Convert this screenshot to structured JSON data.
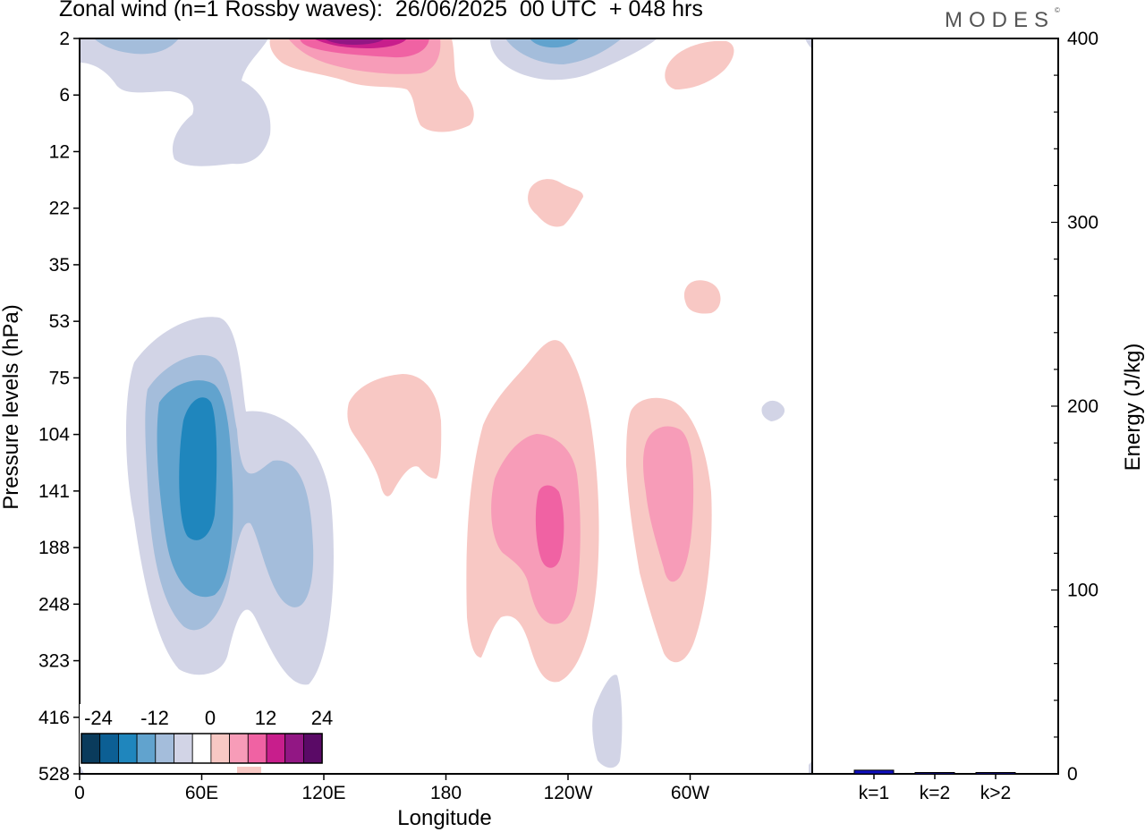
{
  "header": {
    "title": "Zonal wind (n=1 Rossby waves):  26/06/2025  00 UTC  + 048 hrs",
    "brand": "MODES",
    "brand_mark": "©"
  },
  "chart_data": [
    {
      "type": "heatmap",
      "xlabel": "Longitude",
      "ylabel": "Pressure levels (hPa)",
      "x_ticks": [
        "0",
        "60E",
        "120E",
        "180",
        "120W",
        "60W"
      ],
      "x_tick_degrees": [
        0,
        60,
        120,
        180,
        240,
        300
      ],
      "xlim": [
        0,
        360
      ],
      "y_ticks": [
        "2",
        "6",
        "12",
        "22",
        "35",
        "53",
        "75",
        "104",
        "141",
        "188",
        "248",
        "323",
        "416",
        "528"
      ],
      "colorbar": {
        "labels": [
          "-24",
          "-12",
          "0",
          "12",
          "24"
        ],
        "levels": [
          -30,
          -25,
          -20,
          -15,
          -10,
          -5,
          5,
          10,
          15,
          20,
          25,
          30
        ],
        "colors": [
          "#0a3b5c",
          "#0c5f94",
          "#1f86bd",
          "#61a3ce",
          "#a4bddb",
          "#d2d4e6",
          "#ffffff",
          "#f8c8c4",
          "#f79cb8",
          "#f062a3",
          "#c81e8c",
          "#921784",
          "#5a0a66"
        ]
      },
      "regions": [
        {
          "sign": "negative",
          "level": -5,
          "center": [
            55,
            "141"
          ],
          "note": "westerly-negative anomaly"
        },
        {
          "sign": "negative",
          "level": -10,
          "center": [
            60,
            "141"
          ]
        },
        {
          "sign": "negative",
          "level": -15,
          "center": [
            55,
            "141"
          ]
        },
        {
          "sign": "negative",
          "level": -20,
          "center": [
            55,
            "141"
          ]
        },
        {
          "sign": "negative",
          "level": -5,
          "center": [
            75,
            "6"
          ]
        },
        {
          "sign": "negative",
          "level": -5,
          "center": [
            235,
            "2"
          ]
        },
        {
          "sign": "negative",
          "level": -10,
          "center": [
            235,
            "2"
          ]
        },
        {
          "sign": "positive",
          "level": 5,
          "center": [
            150,
            "104"
          ]
        },
        {
          "sign": "positive",
          "level": 5,
          "center": [
            232,
            "141"
          ]
        },
        {
          "sign": "positive",
          "level": 10,
          "center": [
            232,
            "141"
          ]
        },
        {
          "sign": "positive",
          "level": 15,
          "center": [
            232,
            "141"
          ]
        },
        {
          "sign": "positive",
          "level": 5,
          "center": [
            290,
            "141"
          ]
        },
        {
          "sign": "positive",
          "level": 10,
          "center": [
            290,
            "141"
          ]
        },
        {
          "sign": "positive",
          "level": 5,
          "center": [
            140,
            "2"
          ]
        },
        {
          "sign": "positive",
          "level": 10,
          "center": [
            140,
            "2"
          ]
        },
        {
          "sign": "positive",
          "level": 15,
          "center": [
            140,
            "2"
          ]
        },
        {
          "sign": "positive",
          "level": 20,
          "center": [
            140,
            "2"
          ]
        }
      ]
    },
    {
      "type": "bar",
      "ylabel": "Energy (J/kg)",
      "categories": [
        "k=1",
        "k=2",
        "k>2"
      ],
      "values": [
        2,
        0.2,
        0.5
      ],
      "ylim": [
        0,
        400
      ],
      "y_ticks": [
        "0",
        "100",
        "200",
        "300",
        "400"
      ],
      "y_minor_step": 20,
      "bar_color": "#1010c0"
    }
  ]
}
